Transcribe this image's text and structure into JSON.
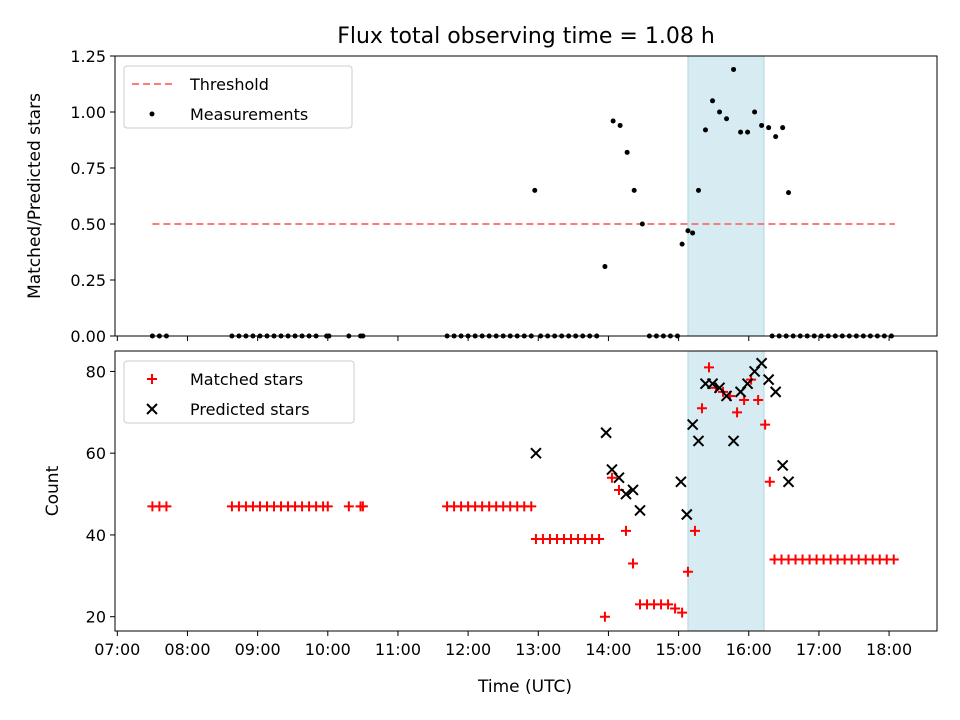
{
  "title": "Flux total observing time = 1.08 h",
  "chart_data": [
    {
      "type": "scatter",
      "ylabel": "Matched/Predicted stars",
      "ylim": [
        0,
        1.25
      ],
      "xlim_hours": [
        6.967,
        18.683
      ],
      "yticks": [
        0.0,
        0.25,
        0.5,
        0.75,
        1.0,
        1.25
      ],
      "ytick_labels": [
        "0.00",
        "0.25",
        "0.50",
        "0.75",
        "1.00",
        "1.25"
      ],
      "highlight_span": [
        "15:08",
        "16:13"
      ],
      "threshold": {
        "name": "Threshold",
        "value": 0.5,
        "x_range": [
          "07:30",
          "18:05"
        ],
        "color": "#ff7a7a"
      },
      "legend": {
        "location": "upper left",
        "entries": [
          "Threshold",
          "Measurements"
        ]
      },
      "series": [
        {
          "name": "Measurements",
          "color": "#000000",
          "points": [
            [
              "07:30",
              0
            ],
            [
              "07:36",
              0
            ],
            [
              "07:42",
              0
            ],
            [
              "08:38",
              0
            ],
            [
              "08:44",
              0
            ],
            [
              "08:50",
              0
            ],
            [
              "08:56",
              0
            ],
            [
              "09:02",
              0
            ],
            [
              "09:08",
              0
            ],
            [
              "09:14",
              0
            ],
            [
              "09:20",
              0
            ],
            [
              "09:26",
              0
            ],
            [
              "09:32",
              0
            ],
            [
              "09:38",
              0
            ],
            [
              "09:44",
              0
            ],
            [
              "09:50",
              0
            ],
            [
              "09:59",
              0
            ],
            [
              "10:01",
              0
            ],
            [
              "10:18",
              0
            ],
            [
              "10:28",
              0
            ],
            [
              "10:30",
              0
            ],
            [
              "11:42",
              0
            ],
            [
              "11:48",
              0
            ],
            [
              "11:54",
              0
            ],
            [
              "12:00",
              0
            ],
            [
              "12:06",
              0
            ],
            [
              "12:12",
              0
            ],
            [
              "12:18",
              0
            ],
            [
              "12:24",
              0
            ],
            [
              "12:30",
              0
            ],
            [
              "12:36",
              0
            ],
            [
              "12:42",
              0
            ],
            [
              "12:48",
              0
            ],
            [
              "12:54",
              0
            ],
            [
              "12:57",
              0.65
            ],
            [
              "13:02",
              0
            ],
            [
              "13:08",
              0
            ],
            [
              "13:14",
              0
            ],
            [
              "13:20",
              0
            ],
            [
              "13:26",
              0
            ],
            [
              "13:32",
              0
            ],
            [
              "13:38",
              0
            ],
            [
              "13:44",
              0
            ],
            [
              "13:50",
              0
            ],
            [
              "13:57",
              0.31
            ],
            [
              "14:04",
              0.96
            ],
            [
              "14:10",
              0.94
            ],
            [
              "14:16",
              0.82
            ],
            [
              "14:22",
              0.65
            ],
            [
              "14:29",
              0.5
            ],
            [
              "14:35",
              0
            ],
            [
              "14:41",
              0
            ],
            [
              "14:47",
              0
            ],
            [
              "14:53",
              0
            ],
            [
              "14:59",
              0
            ],
            [
              "15:03",
              0.41
            ],
            [
              "15:08",
              0.47
            ],
            [
              "15:12",
              0.46
            ],
            [
              "15:17",
              0.65
            ],
            [
              "15:23",
              0.92
            ],
            [
              "15:29",
              1.05
            ],
            [
              "15:35",
              1.0
            ],
            [
              "15:41",
              0.97
            ],
            [
              "15:47",
              1.19
            ],
            [
              "15:53",
              0.91
            ],
            [
              "15:59",
              0.91
            ],
            [
              "16:05",
              1.0
            ],
            [
              "16:11",
              0.94
            ],
            [
              "16:17",
              0.93
            ],
            [
              "16:23",
              0.89
            ],
            [
              "16:29",
              0.93
            ],
            [
              "16:34",
              0.64
            ],
            [
              "16:20",
              0
            ],
            [
              "16:26",
              0
            ],
            [
              "16:32",
              0
            ],
            [
              "16:38",
              0
            ],
            [
              "16:44",
              0
            ],
            [
              "16:50",
              0
            ],
            [
              "16:56",
              0
            ],
            [
              "17:02",
              0
            ],
            [
              "17:08",
              0
            ],
            [
              "17:14",
              0
            ],
            [
              "17:20",
              0
            ],
            [
              "17:26",
              0
            ],
            [
              "17:32",
              0
            ],
            [
              "17:38",
              0
            ],
            [
              "17:44",
              0
            ],
            [
              "17:50",
              0
            ],
            [
              "17:56",
              0
            ],
            [
              "18:02",
              0
            ]
          ]
        }
      ]
    },
    {
      "type": "scatter",
      "xlabel": "Time (UTC)",
      "ylabel": "Count",
      "ylim": [
        16.5,
        85
      ],
      "xlim_hours": [
        6.967,
        18.683
      ],
      "yticks": [
        20,
        40,
        60,
        80
      ],
      "ytick_labels": [
        "20",
        "40",
        "60",
        "80"
      ],
      "xticks": [
        "07:00",
        "08:00",
        "09:00",
        "10:00",
        "11:00",
        "12:00",
        "13:00",
        "14:00",
        "15:00",
        "16:00",
        "17:00",
        "18:00"
      ],
      "highlight_span": [
        "15:08",
        "16:13"
      ],
      "legend": {
        "location": "upper left",
        "entries": [
          "Matched stars",
          "Predicted stars"
        ]
      },
      "series": [
        {
          "name": "Matched stars",
          "marker": "+",
          "color": "#ff0000",
          "points": [
            [
              "07:30",
              47
            ],
            [
              "07:36",
              47
            ],
            [
              "07:42",
              47
            ],
            [
              "08:38",
              47
            ],
            [
              "08:44",
              47
            ],
            [
              "08:50",
              47
            ],
            [
              "08:56",
              47
            ],
            [
              "09:02",
              47
            ],
            [
              "09:08",
              47
            ],
            [
              "09:14",
              47
            ],
            [
              "09:20",
              47
            ],
            [
              "09:26",
              47
            ],
            [
              "09:32",
              47
            ],
            [
              "09:38",
              47
            ],
            [
              "09:44",
              47
            ],
            [
              "09:50",
              47
            ],
            [
              "09:56",
              47
            ],
            [
              "10:00",
              47
            ],
            [
              "10:18",
              47
            ],
            [
              "10:28",
              47
            ],
            [
              "10:30",
              47
            ],
            [
              "11:42",
              47
            ],
            [
              "11:48",
              47
            ],
            [
              "11:54",
              47
            ],
            [
              "12:00",
              47
            ],
            [
              "12:06",
              47
            ],
            [
              "12:12",
              47
            ],
            [
              "12:18",
              47
            ],
            [
              "12:24",
              47
            ],
            [
              "12:30",
              47
            ],
            [
              "12:36",
              47
            ],
            [
              "12:42",
              47
            ],
            [
              "12:48",
              47
            ],
            [
              "12:54",
              47
            ],
            [
              "12:58",
              39
            ],
            [
              "13:04",
              39
            ],
            [
              "13:10",
              39
            ],
            [
              "13:16",
              39
            ],
            [
              "13:22",
              39
            ],
            [
              "13:28",
              39
            ],
            [
              "13:34",
              39
            ],
            [
              "13:40",
              39
            ],
            [
              "13:46",
              39
            ],
            [
              "13:52",
              39
            ],
            [
              "13:57",
              20
            ],
            [
              "14:03",
              54
            ],
            [
              "14:09",
              51
            ],
            [
              "14:15",
              41
            ],
            [
              "14:21",
              33
            ],
            [
              "14:27",
              23
            ],
            [
              "14:33",
              23
            ],
            [
              "14:39",
              23
            ],
            [
              "14:45",
              23
            ],
            [
              "14:51",
              23
            ],
            [
              "14:57",
              22
            ],
            [
              "15:03",
              21
            ],
            [
              "15:08",
              31
            ],
            [
              "15:14",
              41
            ],
            [
              "15:20",
              71
            ],
            [
              "15:26",
              81
            ],
            [
              "15:32",
              76
            ],
            [
              "15:38",
              75
            ],
            [
              "15:44",
              74
            ],
            [
              "15:50",
              70
            ],
            [
              "15:56",
              73
            ],
            [
              "16:02",
              78
            ],
            [
              "16:08",
              73
            ],
            [
              "16:14",
              67
            ],
            [
              "16:18",
              53
            ],
            [
              "16:22",
              34
            ],
            [
              "16:28",
              34
            ],
            [
              "16:34",
              34
            ],
            [
              "16:40",
              34
            ],
            [
              "16:46",
              34
            ],
            [
              "16:52",
              34
            ],
            [
              "16:58",
              34
            ],
            [
              "17:04",
              34
            ],
            [
              "17:10",
              34
            ],
            [
              "17:16",
              34
            ],
            [
              "17:22",
              34
            ],
            [
              "17:28",
              34
            ],
            [
              "17:34",
              34
            ],
            [
              "17:40",
              34
            ],
            [
              "17:46",
              34
            ],
            [
              "17:52",
              34
            ],
            [
              "17:58",
              34
            ],
            [
              "18:04",
              34
            ]
          ]
        },
        {
          "name": "Predicted stars",
          "marker": "x",
          "color": "#000000",
          "points": [
            [
              "12:58",
              60
            ],
            [
              "13:58",
              65
            ],
            [
              "14:03",
              56
            ],
            [
              "14:09",
              54
            ],
            [
              "14:15",
              50
            ],
            [
              "14:21",
              51
            ],
            [
              "14:27",
              46
            ],
            [
              "15:02",
              53
            ],
            [
              "15:07",
              45
            ],
            [
              "15:12",
              67
            ],
            [
              "15:17",
              63
            ],
            [
              "15:23",
              77
            ],
            [
              "15:29",
              77
            ],
            [
              "15:35",
              76
            ],
            [
              "15:41",
              74
            ],
            [
              "15:47",
              63
            ],
            [
              "15:53",
              75
            ],
            [
              "15:59",
              77
            ],
            [
              "16:05",
              80
            ],
            [
              "16:11",
              82
            ],
            [
              "16:17",
              78
            ],
            [
              "16:23",
              75
            ],
            [
              "16:29",
              57
            ],
            [
              "16:34",
              53
            ]
          ]
        }
      ]
    }
  ]
}
